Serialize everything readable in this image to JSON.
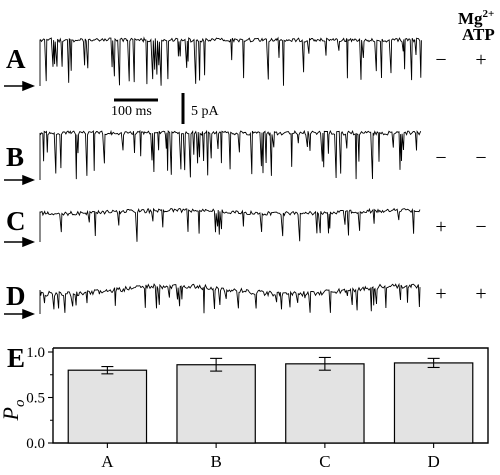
{
  "header": {
    "mg_label": "Mg",
    "mg_superscript": "2+",
    "atp_label": "ATP"
  },
  "traces": [
    {
      "label": "A",
      "mg": "−",
      "atp": "+"
    },
    {
      "label": "B",
      "mg": "−",
      "atp": "−"
    },
    {
      "label": "C",
      "mg": "+",
      "atp": "−"
    },
    {
      "label": "D",
      "mg": "+",
      "atp": "+"
    }
  ],
  "scale_bar": {
    "time": "100 ms",
    "current": "5 pA"
  },
  "chart_panel_label": "E",
  "chart_data": {
    "type": "bar",
    "categories": [
      "A",
      "B",
      "C",
      "D"
    ],
    "values": [
      0.8,
      0.86,
      0.87,
      0.88
    ],
    "error_up": [
      0.04,
      0.07,
      0.07,
      0.05
    ],
    "error_down": [
      0.04,
      0.07,
      0.07,
      0.05
    ],
    "ylabel_main": "P",
    "ylabel_sub": "o",
    "ylim": [
      0,
      1.0
    ],
    "yticks": [
      "0.0",
      "0.5",
      "1.0"
    ],
    "grid": false,
    "bar_color": "#e3e3e3"
  }
}
